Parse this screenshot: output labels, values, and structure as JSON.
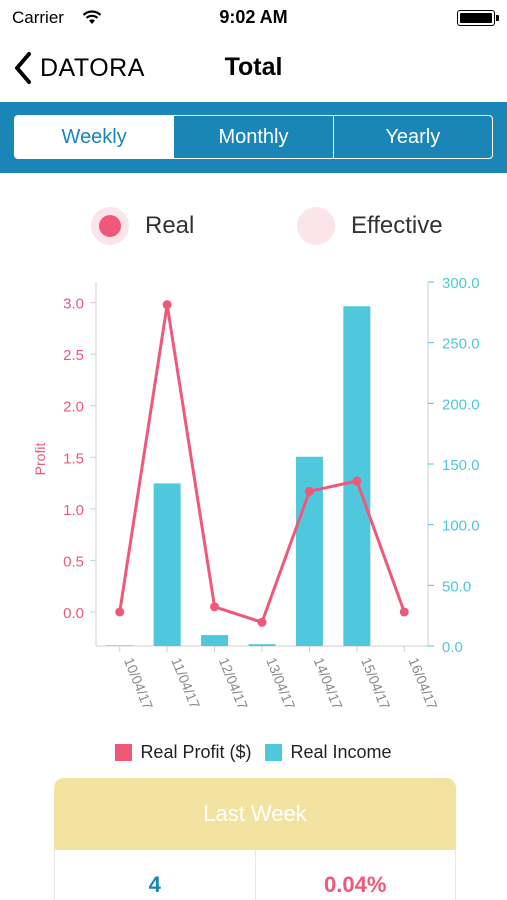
{
  "status": {
    "carrier": "Carrier",
    "time": "9:02 AM"
  },
  "nav": {
    "back_label": "DATORA",
    "title": "Total"
  },
  "segments": [
    {
      "label": "Weekly",
      "active": true
    },
    {
      "label": "Monthly",
      "active": false
    },
    {
      "label": "Yearly",
      "active": false
    }
  ],
  "toggle": {
    "real_label": "Real",
    "effective_label": "Effective",
    "selected": "Real"
  },
  "colors": {
    "accent": "#1a86b8",
    "profit": "#f0587a",
    "income": "#4fc7dc",
    "card": "#f2e3a0"
  },
  "chart_data": {
    "type": "bar+line",
    "categories": [
      "10/04/17",
      "11/04/17",
      "12/04/17",
      "13/04/17",
      "14/04/17",
      "15/04/17",
      "16/04/17"
    ],
    "series": [
      {
        "name": "Real Profit ($)",
        "type": "line",
        "axis": "left",
        "values": [
          0.0,
          2.98,
          0.05,
          -0.1,
          1.17,
          1.27,
          0.0
        ]
      },
      {
        "name": "Real Income",
        "type": "bar",
        "axis": "right",
        "values": [
          0.5,
          134.0,
          9.0,
          1.5,
          156.0,
          280.0,
          0.0
        ]
      }
    ],
    "ylabel": "Profit",
    "ylim_left": [
      -0.33,
      3.2
    ],
    "yticks_left": [
      "3.0",
      "2.5",
      "2.0",
      "1.5",
      "1.0",
      "0.5",
      "0.0"
    ],
    "ylim_right": [
      0,
      300
    ],
    "yticks_right": [
      "300.0",
      "250.0",
      "200.0",
      "150.0",
      "100.0",
      "50.0",
      "0.0"
    ],
    "legend_position": "bottom"
  },
  "card": {
    "title": "Last Week"
  },
  "stats": [
    {
      "value": "4",
      "color": "#1a86b8"
    },
    {
      "value": "0.04%",
      "color": "#f0587a"
    }
  ]
}
